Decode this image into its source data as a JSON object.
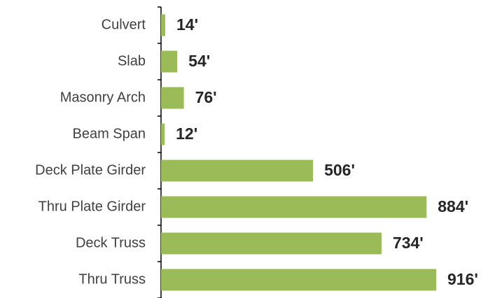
{
  "chart_data": {
    "type": "bar",
    "orientation": "horizontal",
    "categories": [
      "Culvert",
      "Slab",
      "Masonry Arch",
      "Beam Span",
      "Deck Plate Girder",
      "Thru Plate Girder",
      "Deck Truss",
      "Thru Truss"
    ],
    "values": [
      14,
      54,
      76,
      12,
      506,
      884,
      734,
      916
    ],
    "value_labels": [
      "14'",
      "54'",
      "76'",
      "12'",
      "506'",
      "884'",
      "734'",
      "916'"
    ],
    "color": "#9bbb59"
  }
}
